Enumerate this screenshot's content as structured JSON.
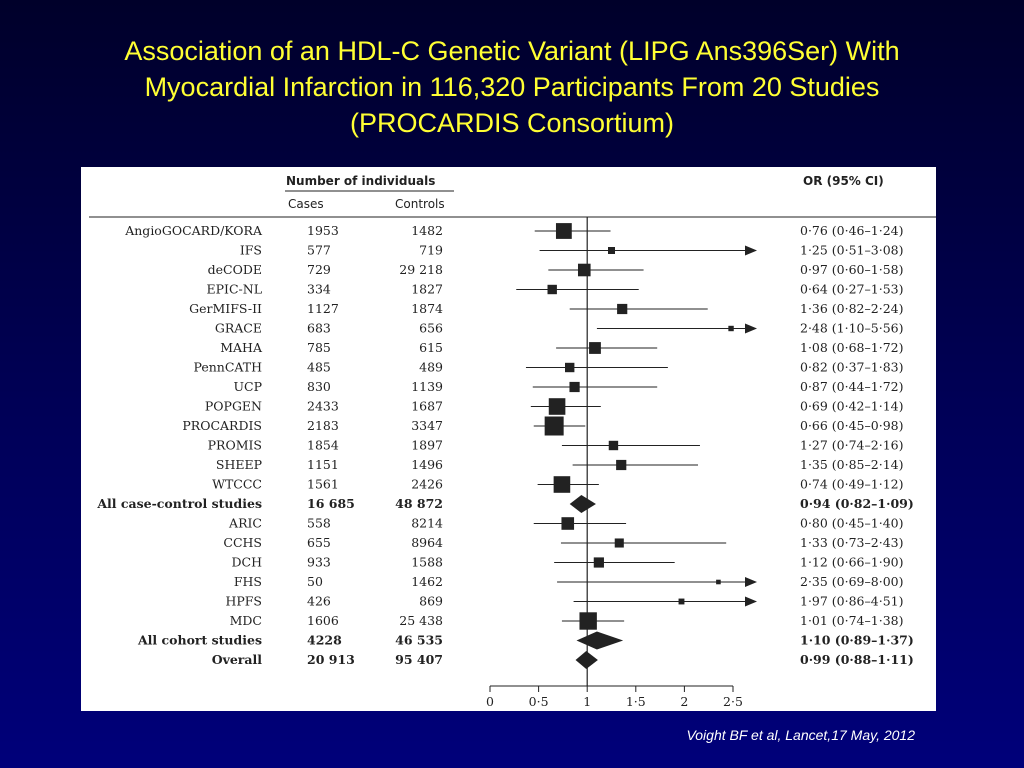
{
  "slide": {
    "title_lines": [
      "Association of an HDL-C Genetic Variant (LIPG Ans396Ser) With",
      "Myocardial Infarction in 116,320 Participants From 20 Studies",
      "(PROCARDIS Consortium)"
    ],
    "citation": "Voight BF et al, Lancet,17 May, 2012",
    "colors": {
      "background": "#000060",
      "title": "#ffff33",
      "citation": "#ffffff",
      "marks": "#222222"
    }
  },
  "chart_data": {
    "type": "forest",
    "headers": {
      "group": "Number of individuals",
      "cases": "Cases",
      "controls": "Controls",
      "or": "OR (95% CI)"
    },
    "xlim": [
      0,
      2.5
    ],
    "xticks": [
      0,
      0.5,
      1,
      1.5,
      2,
      2.5
    ],
    "xtick_labels": [
      "0",
      "0·5",
      "1",
      "1·5",
      "2",
      "2·5"
    ],
    "reference_line": 1,
    "rows": [
      {
        "study": "AngioGOCARD/KORA",
        "cases": "1953",
        "controls": "1482",
        "or": 0.76,
        "lo": 0.46,
        "hi": 1.24,
        "label": "0·76 (0·46–1·24)",
        "weight": 0.8
      },
      {
        "study": "IFS",
        "cases": "577",
        "controls": "719",
        "or": 1.25,
        "lo": 0.51,
        "hi": 3.08,
        "label": "1·25 (0·51–3·08)",
        "weight": 0.25
      },
      {
        "study": "deCODE",
        "cases": "729",
        "controls": "29 218",
        "or": 0.97,
        "lo": 0.6,
        "hi": 1.58,
        "label": "0·97 (0·60–1·58)",
        "weight": 0.6
      },
      {
        "study": "EPIC-NL",
        "cases": "334",
        "controls": "1827",
        "or": 0.64,
        "lo": 0.27,
        "hi": 1.53,
        "label": "0·64 (0·27–1·53)",
        "weight": 0.4
      },
      {
        "study": "GerMIFS-II",
        "cases": "1127",
        "controls": "1874",
        "or": 1.36,
        "lo": 0.82,
        "hi": 2.24,
        "label": "1·36 (0·82–2·24)",
        "weight": 0.45
      },
      {
        "study": "GRACE",
        "cases": "683",
        "controls": "656",
        "or": 2.48,
        "lo": 1.1,
        "hi": 5.56,
        "label": "2·48 (1·10–5·56)",
        "weight": 0.15
      },
      {
        "study": "MAHA",
        "cases": "785",
        "controls": "615",
        "or": 1.08,
        "lo": 0.68,
        "hi": 1.72,
        "label": "1·08 (0·68–1·72)",
        "weight": 0.55
      },
      {
        "study": "PennCATH",
        "cases": "485",
        "controls": "489",
        "or": 0.82,
        "lo": 0.37,
        "hi": 1.83,
        "label": "0·82 (0·37–1·83)",
        "weight": 0.4
      },
      {
        "study": "UCP",
        "cases": "830",
        "controls": "1139",
        "or": 0.87,
        "lo": 0.44,
        "hi": 1.72,
        "label": "0·87 (0·44–1·72)",
        "weight": 0.45
      },
      {
        "study": "POPGEN",
        "cases": "2433",
        "controls": "1687",
        "or": 0.69,
        "lo": 0.42,
        "hi": 1.14,
        "label": "0·69 (0·42–1·14)",
        "weight": 0.85
      },
      {
        "study": "PROCARDIS",
        "cases": "2183",
        "controls": "3347",
        "or": 0.66,
        "lo": 0.45,
        "hi": 0.98,
        "label": "0·66 (0·45–0·98)",
        "weight": 1.0
      },
      {
        "study": "PROMIS",
        "cases": "1854",
        "controls": "1897",
        "or": 1.27,
        "lo": 0.74,
        "hi": 2.16,
        "label": "1·27 (0·74–2·16)",
        "weight": 0.4
      },
      {
        "study": "SHEEP",
        "cases": "1151",
        "controls": "1496",
        "or": 1.35,
        "lo": 0.85,
        "hi": 2.14,
        "label": "1·35 (0·85–2·14)",
        "weight": 0.45
      },
      {
        "study": "WTCCC",
        "cases": "1561",
        "controls": "2426",
        "or": 0.74,
        "lo": 0.49,
        "hi": 1.12,
        "label": "0·74 (0·49–1·12)",
        "weight": 0.85
      },
      {
        "study": "All case-control studies",
        "cases": "16 685",
        "controls": "48 872",
        "or": 0.94,
        "lo": 0.82,
        "hi": 1.09,
        "label": "0·94 (0·82–1·09)",
        "summary": true
      },
      {
        "study": "ARIC",
        "cases": "558",
        "controls": "8214",
        "or": 0.8,
        "lo": 0.45,
        "hi": 1.4,
        "label": "0·80 (0·45–1·40)",
        "weight": 0.6
      },
      {
        "study": "CCHS",
        "cases": "655",
        "controls": "8964",
        "or": 1.33,
        "lo": 0.73,
        "hi": 2.43,
        "label": "1·33 (0·73–2·43)",
        "weight": 0.38
      },
      {
        "study": "DCH",
        "cases": "933",
        "controls": "1588",
        "or": 1.12,
        "lo": 0.66,
        "hi": 1.9,
        "label": "1·12 (0·66–1·90)",
        "weight": 0.45
      },
      {
        "study": "FHS",
        "cases": "50",
        "controls": "1462",
        "or": 2.35,
        "lo": 0.69,
        "hi": 8.0,
        "label": "2·35 (0·69–8·00)",
        "weight": 0.1
      },
      {
        "study": "HPFS",
        "cases": "426",
        "controls": "869",
        "or": 1.97,
        "lo": 0.86,
        "hi": 4.51,
        "label": "1·97 (0·86–4·51)",
        "weight": 0.18
      },
      {
        "study": "MDC",
        "cases": "1606",
        "controls": "25 438",
        "or": 1.01,
        "lo": 0.74,
        "hi": 1.38,
        "label": "1·01 (0·74–1·38)",
        "weight": 0.9
      },
      {
        "study": "All cohort studies",
        "cases": "4228",
        "controls": "46 535",
        "or": 1.1,
        "lo": 0.89,
        "hi": 1.37,
        "label": "1·10 (0·89–1·37)",
        "summary": true
      },
      {
        "study": "Overall",
        "cases": "20 913",
        "controls": "95 407",
        "or": 0.99,
        "lo": 0.88,
        "hi": 1.11,
        "label": "0·99 (0·88–1·11)",
        "summary": true
      }
    ]
  }
}
